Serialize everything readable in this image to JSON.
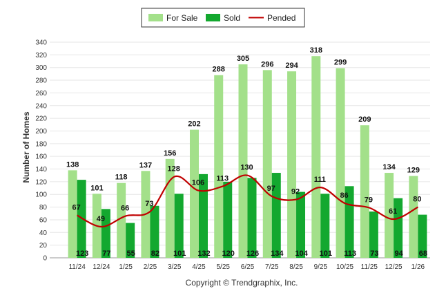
{
  "colors": {
    "for_sale": "#a3e08a",
    "sold": "#13a82f",
    "pended": "#c00000",
    "grid": "#e6e6e6"
  },
  "legend": {
    "items": [
      "For Sale",
      "Sold",
      "Pended"
    ]
  },
  "copyright": "Copyright © Trendgraphix, Inc.",
  "chart_data": {
    "type": "bar",
    "ylabel": "Number of Homes",
    "xlabel": "",
    "ylim": [
      0,
      340
    ],
    "yticks": [
      0,
      20,
      40,
      60,
      80,
      100,
      120,
      140,
      160,
      180,
      200,
      220,
      240,
      260,
      280,
      300,
      320,
      340
    ],
    "legend_position": "top-center",
    "grid": true,
    "categories": [
      "11/24",
      "12/24",
      "1/25",
      "2/25",
      "3/25",
      "4/25",
      "5/25",
      "6/25",
      "7/25",
      "8/25",
      "9/25",
      "10/25",
      "11/25",
      "12/25",
      "1/26"
    ],
    "series": [
      {
        "name": "For Sale",
        "type": "bar",
        "values": [
          138,
          101,
          118,
          137,
          156,
          202,
          288,
          305,
          296,
          294,
          318,
          299,
          209,
          134,
          129
        ]
      },
      {
        "name": "Sold",
        "type": "bar",
        "values": [
          123,
          77,
          55,
          82,
          101,
          132,
          120,
          126,
          134,
          104,
          101,
          113,
          73,
          94,
          68
        ]
      },
      {
        "name": "Pended",
        "type": "line",
        "values": [
          67,
          49,
          66,
          73,
          128,
          106,
          113,
          130,
          97,
          92,
          111,
          86,
          79,
          61,
          80
        ]
      }
    ]
  }
}
